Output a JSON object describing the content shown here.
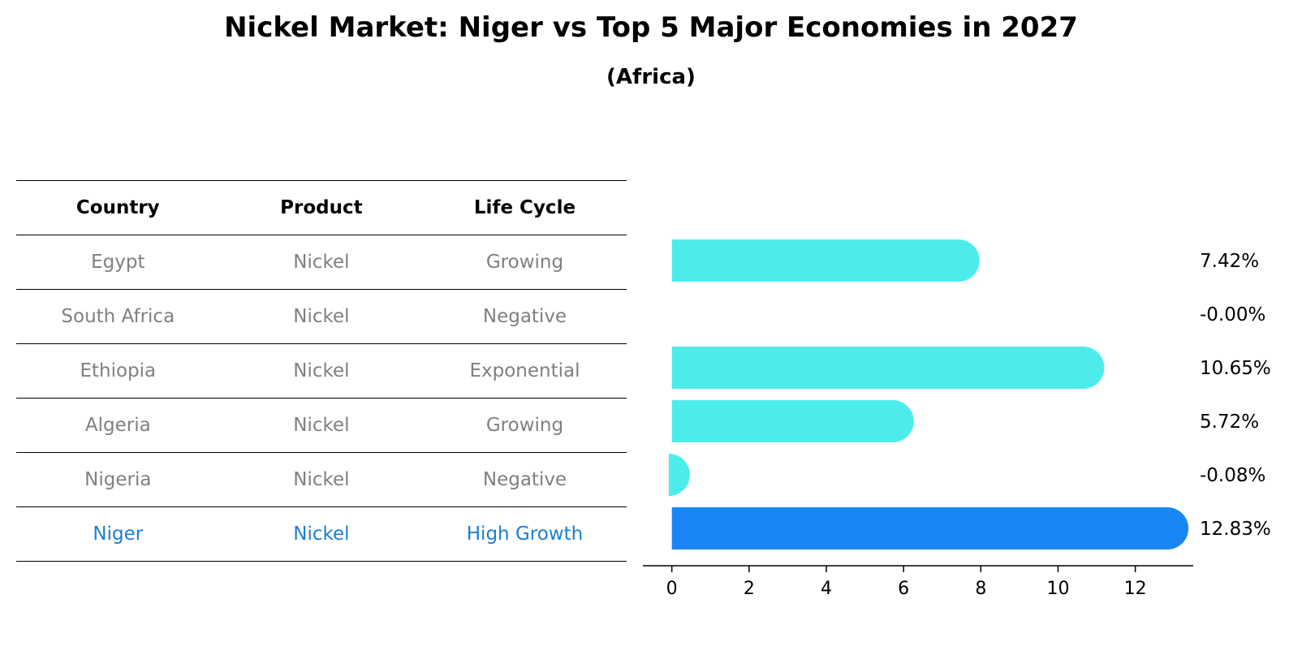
{
  "title": "Nickel Market: Niger vs Top 5 Major Economies in 2027",
  "subtitle": "(Africa)",
  "table": {
    "headers": [
      "Country",
      "Product",
      "Life Cycle"
    ],
    "rows": [
      {
        "country": "Egypt",
        "product": "Nickel",
        "life_cycle": "Growing"
      },
      {
        "country": "South Africa",
        "product": "Nickel",
        "life_cycle": "Negative"
      },
      {
        "country": "Ethiopia",
        "product": "Nickel",
        "life_cycle": "Exponential"
      },
      {
        "country": "Algeria",
        "product": "Nickel",
        "life_cycle": "Growing"
      },
      {
        "country": "Nigeria",
        "product": "Nickel",
        "life_cycle": "Negative"
      },
      {
        "country": "Niger",
        "product": "Nickel",
        "life_cycle": "High Growth"
      }
    ]
  },
  "chart_data": {
    "type": "bar",
    "orientation": "horizontal",
    "categories": [
      "Egypt",
      "South Africa",
      "Ethiopia",
      "Algeria",
      "Nigeria",
      "Niger"
    ],
    "values": [
      7.42,
      -0.0,
      10.65,
      5.72,
      -0.08,
      12.83
    ],
    "value_labels": [
      "7.42%",
      "-0.00%",
      "10.65%",
      "5.72%",
      "-0.08%",
      "12.83%"
    ],
    "highlight": "Niger",
    "xlim": [
      -0.75,
      13.5
    ],
    "xticks": [
      0,
      2,
      4,
      6,
      8,
      10,
      12
    ],
    "colors": {
      "default": "#4deceb",
      "highlight": "#1a85f5"
    }
  }
}
